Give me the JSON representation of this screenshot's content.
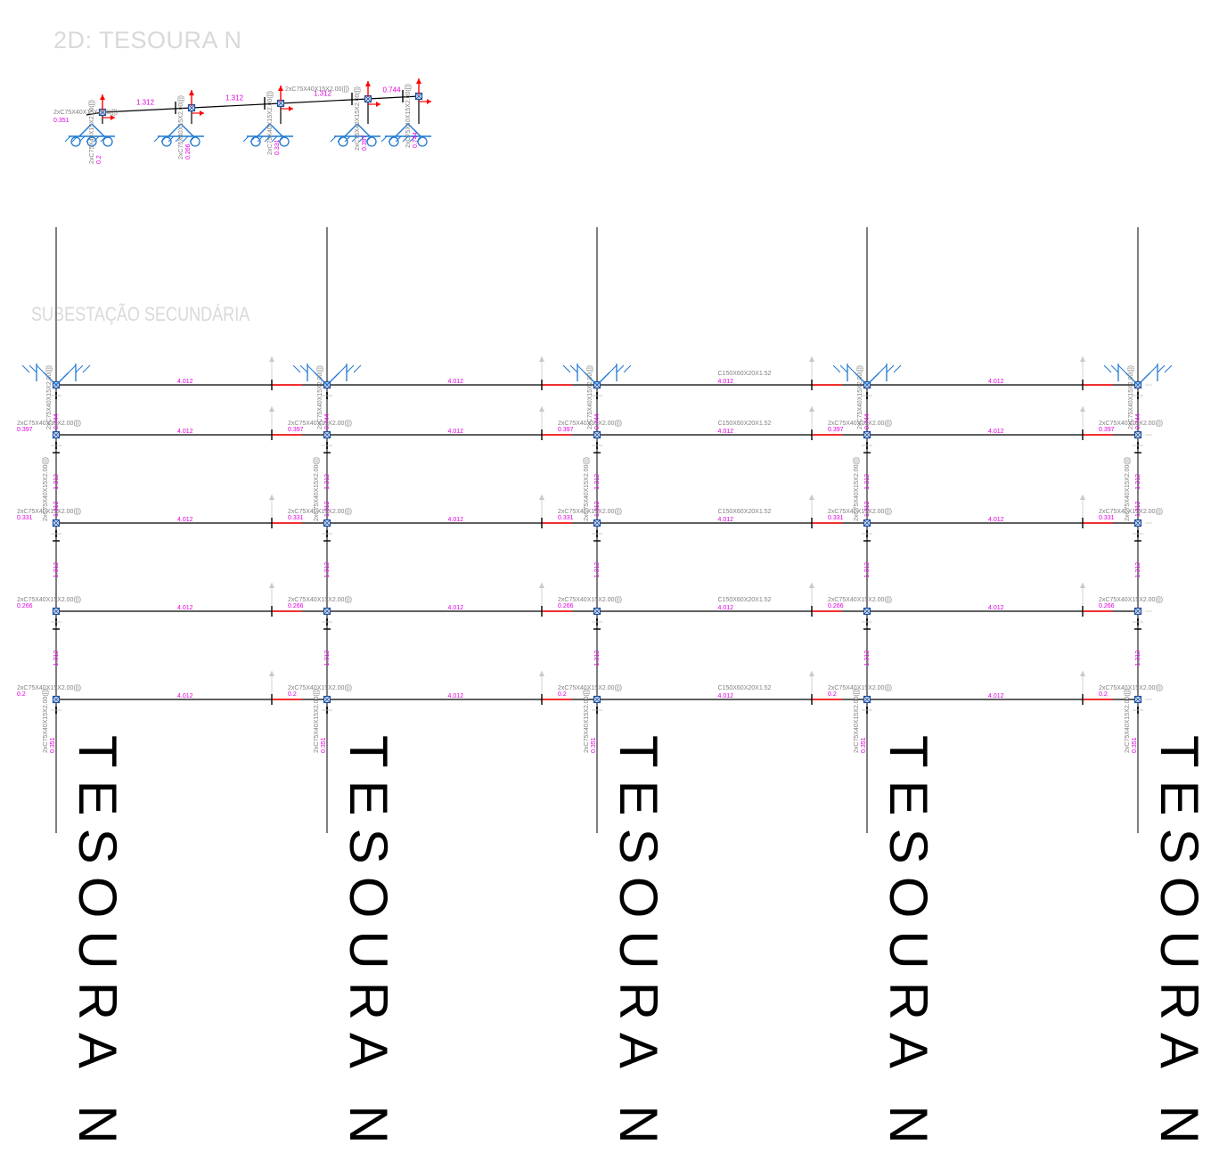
{
  "header": {
    "view_title": "2D: TESOURA N",
    "plan_title": "SUBESTAÇÃO SECUNDÁRIA"
  },
  "colors": {
    "member": "#000000",
    "column": "#7f7f7f",
    "value": "#e000e0",
    "section": "#808080",
    "support": "#1f78d1",
    "load_arrow": "#ff0000",
    "node": "#1f4e9e"
  },
  "elevation": {
    "sections": [
      "2xC75X40X15X2.00([])",
      "2xC75X40X15X2.00([])",
      "2xC75X40X15X2.00([])",
      "2xC75X40X15X2.00([])",
      "2xC75X40X15X2.00([])"
    ],
    "top_section": "2xC75X40X15X2.00([])",
    "left_value": "0.351",
    "segment_values": [
      "1.312",
      "1.312",
      "1.312",
      "0.744"
    ],
    "post_values": [
      "0.2",
      "0.266",
      "0.331",
      "0.397",
      "0.744"
    ]
  },
  "plan": {
    "frame_label": "TESOURA N",
    "rows": [
      {
        "left_section": "",
        "left_value": "",
        "span_value": "4.012",
        "purlin_section": "C150X60X20X1.52"
      },
      {
        "left_section": "2xC75X40X15X2.00([])",
        "left_value": "0.397",
        "span_value": "4.012",
        "purlin_section": "C150X60X20X1.52"
      },
      {
        "left_section": "2xC75X40X15X2.00([])",
        "left_value": "0.331",
        "span_value": "4.012",
        "purlin_section": "C150X60X20X1.52"
      },
      {
        "left_section": "2xC75X40X15X2.00([])",
        "left_value": "0.266",
        "span_value": "4.012",
        "purlin_section": "C150X60X20X1.52"
      },
      {
        "left_section": "2xC75X40X15X2.00([])",
        "left_value": "0.2",
        "span_value": "4.012",
        "purlin_section": "C150X60X20X1.52"
      }
    ],
    "rafter_values": [
      "1.312",
      "1.312",
      "1.312",
      "1.312"
    ],
    "column_top_section": "2xC75X40X15X2.00([])",
    "column_top_value": "0.744",
    "column_bottom_section": "2xC75X40X15X2.00([])",
    "column_bottom_value": "0.351"
  }
}
